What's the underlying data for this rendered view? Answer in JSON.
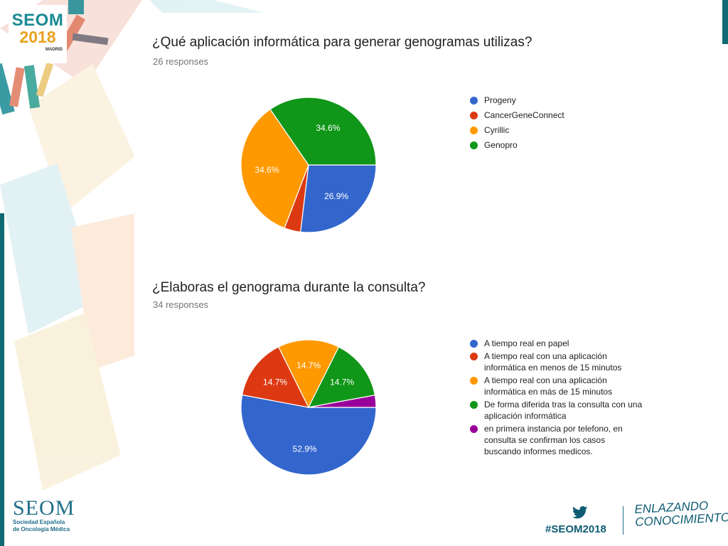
{
  "branding": {
    "logo_top": {
      "line1": "SEOM",
      "line2": "2018",
      "city": "MADRID"
    },
    "logo_bottom": {
      "name": "SEOM",
      "line1": "Sociedad Española",
      "line2": "de Oncología Médica"
    },
    "hashtag": "#SEOM2018",
    "slogan": {
      "line1": "ENLAZANDO",
      "line2": "CONOCIMIENTO"
    }
  },
  "question1": {
    "title": "¿Qué aplicación informática para generar genogramas utilizas?",
    "subtitle": "26 responses"
  },
  "question2": {
    "title": "¿Elaboras el genograma durante la consulta?",
    "subtitle": "34 responses"
  },
  "chart_data": [
    {
      "type": "pie",
      "title": "¿Qué aplicación informática para generar genogramas utilizas?",
      "subtitle": "26 responses",
      "legend_position": "right",
      "slices": [
        {
          "label": "Progeny",
          "value": 26.9,
          "color": "#3366cc",
          "display": "26.9%"
        },
        {
          "label": "CancerGeneConnect",
          "value": 3.9,
          "color": "#dc3912",
          "display": ""
        },
        {
          "label": "Cyrillic",
          "value": 34.6,
          "color": "#ff9900",
          "display": "34.6%"
        },
        {
          "label": "Genopro",
          "value": 34.6,
          "color": "#109618",
          "display": "34.6%"
        }
      ]
    },
    {
      "type": "pie",
      "title": "¿Elaboras el genograma durante la consulta?",
      "subtitle": "34 responses",
      "legend_position": "right",
      "slices": [
        {
          "label": "A tiempo real en papel",
          "value": 52.9,
          "color": "#3366cc",
          "display": "52.9%"
        },
        {
          "label": "A tiempo real con una aplicación informática en menos de 15 minutos",
          "value": 14.7,
          "color": "#dc3912",
          "display": "14.7%"
        },
        {
          "label": "A tiempo real con una aplicación informática en más de 15 minutos",
          "value": 14.7,
          "color": "#ff9900",
          "display": "14.7%"
        },
        {
          "label": "De forma diferida tras la consulta con una aplicación informática",
          "value": 14.7,
          "color": "#109618",
          "display": "14.7%"
        },
        {
          "label": "en primera instancia por telefono, en consulta se confirman los casos buscando informes medicos.",
          "value": 2.9,
          "color": "#990099",
          "display": ""
        }
      ]
    }
  ]
}
